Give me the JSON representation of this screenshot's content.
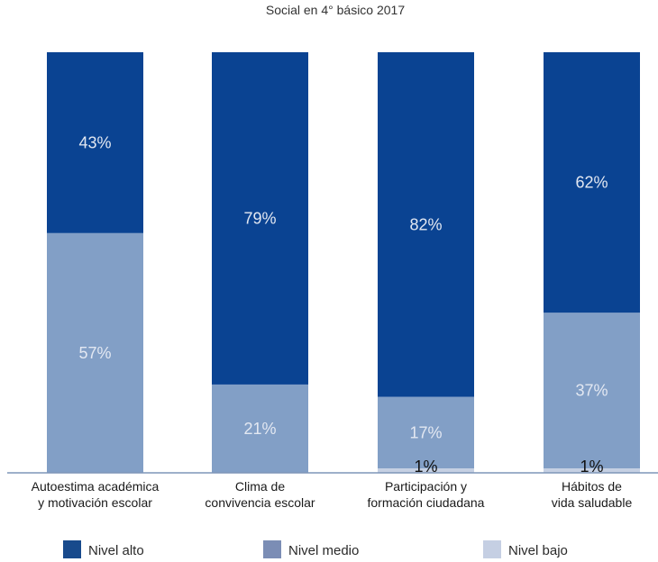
{
  "chart_data": {
    "type": "bar",
    "stacked": true,
    "title": "Social en 4° básico 2017",
    "categories": [
      [
        "Autoestima académica",
        "y motivación escolar"
      ],
      [
        "Clima de",
        "convivencia escolar"
      ],
      [
        "Participación y",
        "formación ciudadana"
      ],
      [
        "Hábitos de",
        "vida saludable"
      ]
    ],
    "series": [
      {
        "name": "Nivel alto",
        "values": [
          43,
          79,
          82,
          62
        ],
        "labels": [
          "43%",
          "79%",
          "82%",
          "62%"
        ],
        "color": "#0a4392"
      },
      {
        "name": "Nivel medio",
        "values": [
          57,
          21,
          17,
          37
        ],
        "labels": [
          "57%",
          "21%",
          "17%",
          "37%"
        ],
        "color": "#829fc6"
      },
      {
        "name": "Nivel bajo",
        "values": [
          0,
          0,
          1,
          1
        ],
        "labels": [
          "",
          "",
          "1%",
          "1%"
        ],
        "color": "#c5d0e3"
      }
    ],
    "ylim": [
      0,
      100
    ],
    "grid": false,
    "legend_position": "bottom",
    "legend": [
      {
        "name": "Nivel alto",
        "color": "#184a8c"
      },
      {
        "name": "Nivel medio",
        "color": "#7b8db5"
      },
      {
        "name": "Nivel bajo",
        "color": "#c5cfe3"
      }
    ]
  }
}
